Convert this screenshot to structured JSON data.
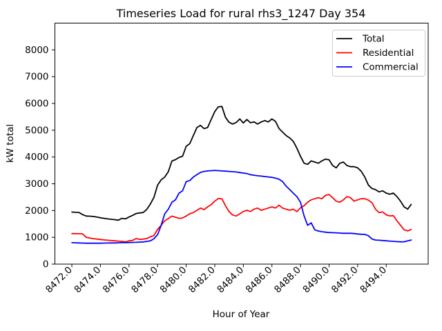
{
  "chart_data": {
    "type": "line",
    "title": "Timeseries Load for rural rhs3_1247  Day 354",
    "xlabel": "Hour of Year",
    "ylabel": "kW total",
    "xlim": [
      8470.8125,
      8496.9375
    ],
    "ylim": [
      0,
      9000
    ],
    "grid": false,
    "legend_position": "upper right",
    "x_ticks": [
      8472,
      8474,
      8476,
      8478,
      8480,
      8482,
      8484,
      8486,
      8488,
      8490,
      8492,
      8494
    ],
    "x_tick_labels": [
      "8472.0",
      "8474.0",
      "8476.0",
      "8478.0",
      "8480.0",
      "8482.0",
      "8484.0",
      "8486.0",
      "8488.0",
      "8490.0",
      "8492.0",
      "8494.0"
    ],
    "y_ticks": [
      0,
      1000,
      2000,
      3000,
      4000,
      5000,
      6000,
      7000,
      8000
    ],
    "y_tick_labels": [
      "0",
      "1000",
      "2000",
      "3000",
      "4000",
      "5000",
      "6000",
      "7000",
      "8000"
    ],
    "x_start": 8472.0,
    "x_step": 0.25,
    "series": [
      {
        "name": "Total",
        "color": "#000000",
        "values": [
          1945,
          1935,
          1930,
          1850,
          1795,
          1790,
          1780,
          1755,
          1730,
          1710,
          1690,
          1675,
          1660,
          1640,
          1710,
          1690,
          1760,
          1820,
          1890,
          1910,
          1930,
          2050,
          2250,
          2500,
          2950,
          3150,
          3250,
          3450,
          3850,
          3900,
          3980,
          4030,
          4400,
          4500,
          4800,
          5100,
          5180,
          5060,
          5100,
          5400,
          5700,
          5870,
          5890,
          5480,
          5300,
          5230,
          5290,
          5420,
          5270,
          5400,
          5280,
          5310,
          5230,
          5310,
          5360,
          5310,
          5420,
          5330,
          5060,
          4930,
          4800,
          4710,
          4580,
          4330,
          4025,
          3767,
          3725,
          3854,
          3811,
          3767,
          3854,
          3922,
          3896,
          3682,
          3596,
          3767,
          3811,
          3682,
          3639,
          3639,
          3596,
          3468,
          3252,
          2953,
          2824,
          2781,
          2695,
          2738,
          2652,
          2610,
          2652,
          2524,
          2352,
          2138,
          2052,
          2230
        ]
      },
      {
        "name": "Residential",
        "color": "#ff0000",
        "values": [
          1140,
          1138,
          1135,
          1130,
          1000,
          975,
          950,
          935,
          920,
          905,
          890,
          880,
          870,
          860,
          850,
          830,
          870,
          885,
          955,
          920,
          935,
          955,
          1020,
          1065,
          1300,
          1450,
          1620,
          1700,
          1795,
          1751,
          1708,
          1725,
          1795,
          1880,
          1923,
          2009,
          2094,
          2035,
          2138,
          2223,
          2350,
          2450,
          2438,
          2181,
          1965,
          1836,
          1795,
          1880,
          1965,
          2009,
          1965,
          2052,
          2094,
          2009,
          2052,
          2094,
          2138,
          2094,
          2200,
          2090,
          2050,
          2010,
          2050,
          1960,
          2100,
          2180,
          2310,
          2400,
          2440,
          2480,
          2440,
          2570,
          2600,
          2480,
          2350,
          2310,
          2400,
          2520,
          2480,
          2350,
          2400,
          2440,
          2440,
          2390,
          2300,
          2050,
          1920,
          1950,
          1840,
          1800,
          1810,
          1620,
          1450,
          1280,
          1240,
          1290
        ]
      },
      {
        "name": "Commercial",
        "color": "#0000ff",
        "values": [
          800,
          795,
          790,
          785,
          780,
          780,
          780,
          780,
          780,
          785,
          788,
          790,
          790,
          795,
          800,
          803,
          806,
          810,
          815,
          822,
          830,
          850,
          870,
          950,
          1100,
          1450,
          1880,
          2050,
          2310,
          2400,
          2650,
          2740,
          3080,
          3120,
          3250,
          3340,
          3425,
          3460,
          3480,
          3490,
          3500,
          3490,
          3480,
          3470,
          3460,
          3450,
          3440,
          3420,
          3400,
          3380,
          3340,
          3320,
          3300,
          3285,
          3270,
          3255,
          3240,
          3210,
          3170,
          3080,
          2910,
          2780,
          2650,
          2520,
          2310,
          1800,
          1450,
          1540,
          1280,
          1236,
          1210,
          1193,
          1180,
          1175,
          1170,
          1160,
          1150,
          1150,
          1150,
          1140,
          1125,
          1115,
          1110,
          1060,
          940,
          900,
          890,
          880,
          870,
          860,
          850,
          840,
          832,
          835,
          870,
          900
        ]
      }
    ]
  }
}
